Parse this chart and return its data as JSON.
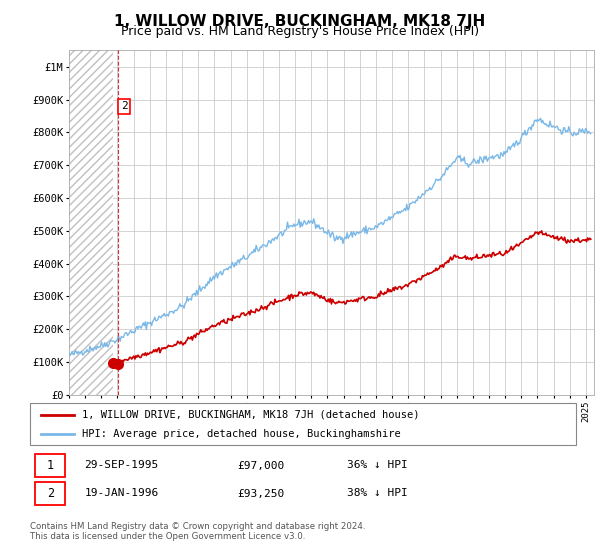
{
  "title": "1, WILLOW DRIVE, BUCKINGHAM, MK18 7JH",
  "subtitle": "Price paid vs. HM Land Registry's House Price Index (HPI)",
  "title_fontsize": 11,
  "subtitle_fontsize": 9,
  "hpi_color": "#7ab8e8",
  "price_color": "#cc0000",
  "marker_color": "#cc0000",
  "dashed_line_color": "#cc0000",
  "ylim": [
    0,
    1050000
  ],
  "yticks": [
    0,
    100000,
    200000,
    300000,
    400000,
    500000,
    600000,
    700000,
    800000,
    900000,
    1000000
  ],
  "ytick_labels": [
    "£0",
    "£100K",
    "£200K",
    "£300K",
    "£400K",
    "£500K",
    "£600K",
    "£700K",
    "£800K",
    "£900K",
    "£1M"
  ],
  "xlim_start": 1993.0,
  "xlim_end": 2025.5,
  "transaction1_x": 1995.75,
  "transaction1_y": 97000,
  "transaction2_x": 1996.05,
  "transaction2_y": 93250,
  "legend_line1": "1, WILLOW DRIVE, BUCKINGHAM, MK18 7JH (detached house)",
  "legend_line2": "HPI: Average price, detached house, Buckinghamshire",
  "footer": "Contains HM Land Registry data © Crown copyright and database right 2024.\nThis data is licensed under the Open Government Licence v3.0."
}
